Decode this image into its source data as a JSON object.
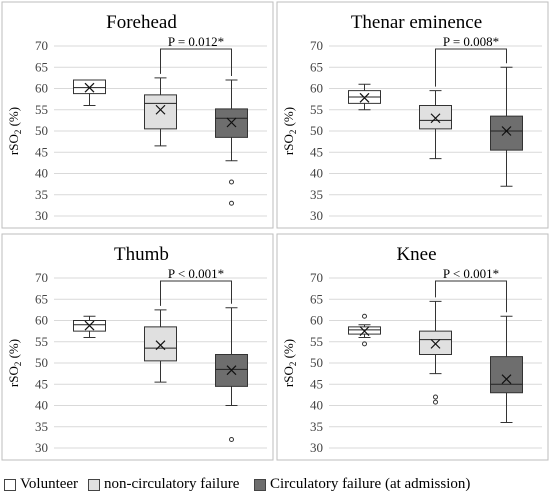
{
  "chart_data": [
    {
      "type": "box",
      "title": "Forehead",
      "ylabel": "rSO2 (%)",
      "ylim": [
        30,
        70
      ],
      "yticks": [
        30,
        35,
        40,
        45,
        50,
        55,
        60,
        65,
        70
      ],
      "annotation": "P = 0.012*",
      "annotation_groups": [
        1,
        2
      ],
      "boxes": [
        {
          "series": "Volunteer",
          "min": 56,
          "q1": 58.8,
          "median": 60.2,
          "q3": 62,
          "max": 62,
          "mean": 60.2,
          "outliers": []
        },
        {
          "series": "non-circulatory failure",
          "min": 46.5,
          "q1": 50.5,
          "median": 56.5,
          "q3": 58.5,
          "max": 62.5,
          "mean": 55,
          "outliers": []
        },
        {
          "series": "Circulatory failure (at admission)",
          "min": 43,
          "q1": 48.5,
          "median": 53,
          "q3": 55.2,
          "max": 62,
          "mean": 52,
          "outliers": [
            38,
            33
          ]
        }
      ]
    },
    {
      "type": "box",
      "title": "Thenar eminence",
      "ylabel": "rSO2 (%)",
      "ylim": [
        30,
        70
      ],
      "yticks": [
        30,
        35,
        40,
        45,
        50,
        55,
        60,
        65,
        70
      ],
      "annotation": "P = 0.008*",
      "annotation_groups": [
        1,
        2
      ],
      "boxes": [
        {
          "series": "Volunteer",
          "min": 55,
          "q1": 56.5,
          "median": 58,
          "q3": 59.5,
          "max": 61,
          "mean": 57.8,
          "outliers": []
        },
        {
          "series": "non-circulatory failure",
          "min": 43.5,
          "q1": 50.5,
          "median": 52.5,
          "q3": 56,
          "max": 59.5,
          "mean": 53,
          "outliers": []
        },
        {
          "series": "Circulatory failure (at admission)",
          "min": 37,
          "q1": 45.5,
          "median": 50,
          "q3": 53.5,
          "max": 65,
          "mean": 50,
          "outliers": []
        }
      ]
    },
    {
      "type": "box",
      "title": "Thumb",
      "ylabel": "rSO2 (%)",
      "ylim": [
        30,
        70
      ],
      "yticks": [
        30,
        35,
        40,
        45,
        50,
        55,
        60,
        65,
        70
      ],
      "annotation": "P < 0.001*",
      "annotation_groups": [
        1,
        2
      ],
      "boxes": [
        {
          "series": "Volunteer",
          "min": 56,
          "q1": 57.5,
          "median": 59,
          "q3": 60,
          "max": 61,
          "mean": 58.8,
          "outliers": []
        },
        {
          "series": "non-circulatory failure",
          "min": 45.5,
          "q1": 50.5,
          "median": 53.5,
          "q3": 58.5,
          "max": 62.5,
          "mean": 54.2,
          "outliers": []
        },
        {
          "series": "Circulatory failure (at admission)",
          "min": 40,
          "q1": 44.5,
          "median": 48.5,
          "q3": 52,
          "max": 63,
          "mean": 48.3,
          "outliers": [
            32
          ]
        }
      ]
    },
    {
      "type": "box",
      "title": "Knee",
      "ylabel": "rSO2 (%)",
      "ylim": [
        30,
        70
      ],
      "yticks": [
        30,
        35,
        40,
        45,
        50,
        55,
        60,
        65,
        70
      ],
      "annotation": "P < 0.001*",
      "annotation_groups": [
        1,
        2
      ],
      "boxes": [
        {
          "series": "Volunteer",
          "min": 56,
          "q1": 56.8,
          "median": 57.8,
          "q3": 58.5,
          "max": 59,
          "mean": 57.5,
          "outliers": [
            61,
            54.5
          ]
        },
        {
          "series": "non-circulatory failure",
          "min": 47.5,
          "q1": 52,
          "median": 55.5,
          "q3": 57.5,
          "max": 64.5,
          "mean": 54.5,
          "outliers": [
            42,
            40.8
          ]
        },
        {
          "series": "Circulatory failure (at admission)",
          "min": 36,
          "q1": 43,
          "median": 45,
          "q3": 51.5,
          "max": 61,
          "mean": 46.2,
          "outliers": []
        }
      ]
    }
  ],
  "legend": [
    {
      "label": "Volunteer",
      "color": "#ffffff"
    },
    {
      "label": "non-circulatory failure",
      "color": "#e0e0e0"
    },
    {
      "label": "Circulatory failure (at admission)",
      "color": "#6e6e6e"
    }
  ],
  "colors": {
    "volunteer": "#ffffff",
    "non_circulatory": "#e0e0e0",
    "circulatory": "#6e6e6e",
    "grid": "#d9d9d9",
    "frame": "#bdbdbd"
  }
}
